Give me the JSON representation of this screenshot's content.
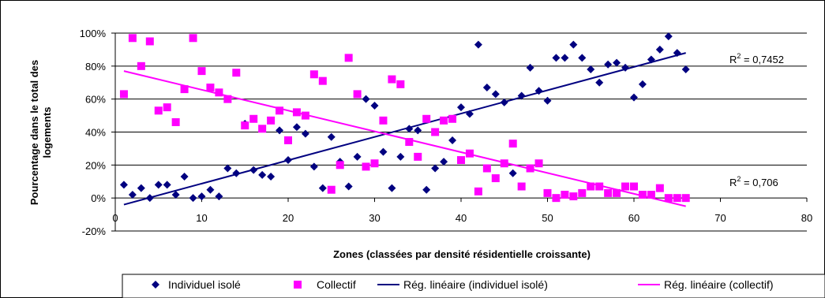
{
  "chart_data": {
    "type": "scatter",
    "title": "",
    "xlabel": "Zones (classées par densité résidentielle croissante)",
    "ylabel_line1": "Pourcentage dans le total des",
    "ylabel_line2": "logements",
    "xlim": [
      0,
      80
    ],
    "ylim": [
      -20,
      100
    ],
    "x_ticks": [
      0,
      10,
      20,
      30,
      40,
      50,
      60,
      70,
      80
    ],
    "y_ticks": [
      -20,
      0,
      20,
      40,
      60,
      80,
      100
    ],
    "y_tick_labels": [
      "-20%",
      "0%",
      "20%",
      "40%",
      "60%",
      "80%",
      "100%"
    ],
    "grid": "horizontal",
    "legend_position": "bottom",
    "series": [
      {
        "name": "Individuel isolé",
        "color": "#000080",
        "marker": "diamond",
        "points": [
          [
            1,
            8
          ],
          [
            2,
            2
          ],
          [
            3,
            6
          ],
          [
            4,
            0
          ],
          [
            5,
            8
          ],
          [
            6,
            8
          ],
          [
            7,
            2
          ],
          [
            8,
            13
          ],
          [
            9,
            0
          ],
          [
            10,
            1
          ],
          [
            11,
            5
          ],
          [
            12,
            1
          ],
          [
            13,
            18
          ],
          [
            14,
            15
          ],
          [
            15,
            45
          ],
          [
            16,
            17
          ],
          [
            17,
            14
          ],
          [
            18,
            13
          ],
          [
            19,
            41
          ],
          [
            20,
            23
          ],
          [
            21,
            43
          ],
          [
            22,
            39
          ],
          [
            23,
            19
          ],
          [
            24,
            6
          ],
          [
            25,
            37
          ],
          [
            26,
            22
          ],
          [
            27,
            7
          ],
          [
            28,
            25
          ],
          [
            29,
            60
          ],
          [
            30,
            56
          ],
          [
            31,
            28
          ],
          [
            32,
            6
          ],
          [
            33,
            25
          ],
          [
            34,
            42
          ],
          [
            35,
            41
          ],
          [
            36,
            5
          ],
          [
            37,
            18
          ],
          [
            38,
            22
          ],
          [
            39,
            35
          ],
          [
            40,
            55
          ],
          [
            41,
            51
          ],
          [
            42,
            93
          ],
          [
            43,
            67
          ],
          [
            44,
            63
          ],
          [
            45,
            58
          ],
          [
            46,
            15
          ],
          [
            47,
            62
          ],
          [
            48,
            79
          ],
          [
            49,
            65
          ],
          [
            50,
            59
          ],
          [
            51,
            85
          ],
          [
            52,
            85
          ],
          [
            53,
            93
          ],
          [
            54,
            85
          ],
          [
            55,
            78
          ],
          [
            56,
            70
          ],
          [
            57,
            81
          ],
          [
            58,
            82
          ],
          [
            59,
            79
          ],
          [
            60,
            61
          ],
          [
            61,
            69
          ],
          [
            62,
            84
          ],
          [
            63,
            90
          ],
          [
            64,
            98
          ],
          [
            65,
            88
          ],
          [
            66,
            78
          ]
        ]
      },
      {
        "name": "Collectif",
        "color": "#FF00FF",
        "marker": "square",
        "points": [
          [
            1,
            63
          ],
          [
            2,
            97
          ],
          [
            3,
            80
          ],
          [
            4,
            95
          ],
          [
            5,
            53
          ],
          [
            6,
            55
          ],
          [
            7,
            46
          ],
          [
            8,
            66
          ],
          [
            9,
            97
          ],
          [
            10,
            77
          ],
          [
            11,
            67
          ],
          [
            12,
            64
          ],
          [
            13,
            60
          ],
          [
            14,
            76
          ],
          [
            15,
            44
          ],
          [
            16,
            48
          ],
          [
            17,
            42
          ],
          [
            18,
            47
          ],
          [
            19,
            53
          ],
          [
            20,
            35
          ],
          [
            21,
            52
          ],
          [
            22,
            50
          ],
          [
            23,
            75
          ],
          [
            24,
            71
          ],
          [
            25,
            5
          ],
          [
            26,
            20
          ],
          [
            27,
            85
          ],
          [
            28,
            63
          ],
          [
            29,
            19
          ],
          [
            30,
            21
          ],
          [
            31,
            47
          ],
          [
            32,
            72
          ],
          [
            33,
            69
          ],
          [
            34,
            34
          ],
          [
            35,
            25
          ],
          [
            36,
            48
          ],
          [
            37,
            40
          ],
          [
            38,
            47
          ],
          [
            39,
            48
          ],
          [
            40,
            23
          ],
          [
            41,
            27
          ],
          [
            42,
            4
          ],
          [
            43,
            18
          ],
          [
            44,
            12
          ],
          [
            45,
            21
          ],
          [
            46,
            33
          ],
          [
            47,
            7
          ],
          [
            48,
            18
          ],
          [
            49,
            21
          ],
          [
            50,
            3
          ],
          [
            51,
            0
          ],
          [
            52,
            2
          ],
          [
            53,
            1
          ],
          [
            54,
            3
          ],
          [
            55,
            7
          ],
          [
            56,
            7
          ],
          [
            57,
            3
          ],
          [
            58,
            3
          ],
          [
            59,
            7
          ],
          [
            60,
            7
          ],
          [
            61,
            2
          ],
          [
            62,
            2
          ],
          [
            63,
            6
          ],
          [
            64,
            0
          ],
          [
            65,
            0
          ],
          [
            66,
            0
          ]
        ]
      },
      {
        "name": "Rég. linéaire (individuel isolé)",
        "color": "#000080",
        "type": "line",
        "x": [
          1,
          66
        ],
        "y": [
          -4,
          88
        ]
      },
      {
        "name": "Rég. linéaire (collectif)",
        "color": "#FF00FF",
        "type": "line",
        "x": [
          1,
          66
        ],
        "y": [
          77,
          -5
        ]
      }
    ],
    "annotations": [
      {
        "text": "R",
        "sup": "2",
        "value": " = 0,7452"
      },
      {
        "text": "R",
        "sup": "2",
        "value": " = 0,706"
      }
    ]
  }
}
